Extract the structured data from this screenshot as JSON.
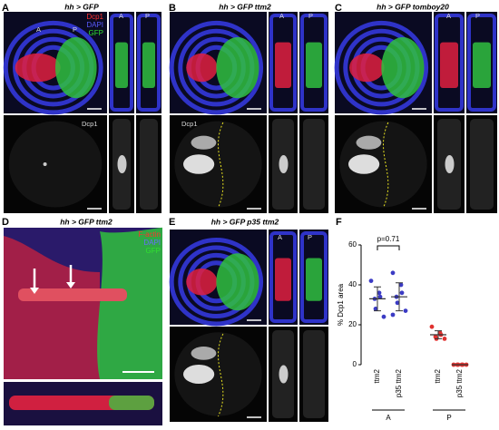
{
  "panels": [
    {
      "letter": "A",
      "title": "hh > GFP",
      "channels": [
        "Dcp1",
        "DAPI",
        "GFP"
      ],
      "image_marks": [
        "A",
        "P"
      ],
      "strip_labels": [
        "A",
        "P"
      ],
      "bottom_label": "Dcp1"
    },
    {
      "letter": "B",
      "title": "hh > GFP ttm2",
      "strip_labels": [
        "A",
        "P"
      ],
      "bottom_label": "Dcp1"
    },
    {
      "letter": "C",
      "title": "hh > GFP tomboy20",
      "strip_labels": [
        "A",
        "P"
      ]
    },
    {
      "letter": "D",
      "title": "hh > GFP ttm2",
      "channels": [
        "F-actin",
        "DAPI",
        "GFP"
      ]
    },
    {
      "letter": "E",
      "title": "hh > GFP p35 ttm2",
      "strip_labels": [
        "A",
        "P"
      ]
    }
  ],
  "chart_data": {
    "type": "dot",
    "letter": "F",
    "y_label": "% Dcp1 area",
    "annotation": "p=0.71",
    "categories": [
      "ttm2",
      "p35 ttm2",
      "ttm2",
      "p35 ttm2"
    ],
    "groups": [
      "A",
      "P"
    ],
    "values": [
      [
        42,
        36,
        34,
        33,
        28,
        24
      ],
      [
        46,
        40,
        36,
        34,
        31,
        27,
        25
      ],
      [
        19,
        16,
        15,
        14,
        13,
        13
      ],
      [
        0,
        0,
        0,
        0,
        0,
        0
      ]
    ],
    "means": [
      33,
      34,
      15,
      0
    ],
    "errors": [
      6,
      7,
      2,
      0
    ],
    "colors": [
      "#3b3bc4",
      "#3b3bc4",
      "#e0312f",
      "#e0312f"
    ],
    "ylim": [
      0,
      60
    ],
    "yticks": [
      0,
      20,
      40,
      60
    ]
  }
}
